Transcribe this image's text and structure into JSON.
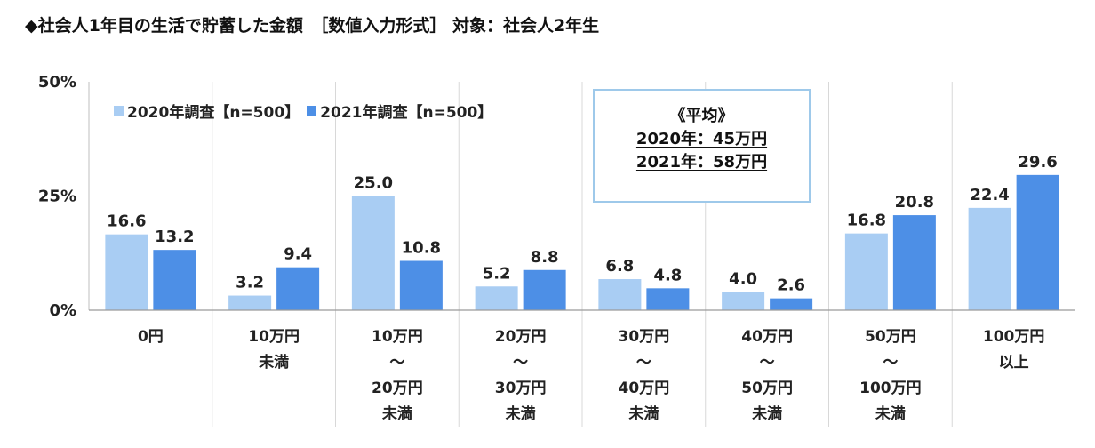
{
  "title": "◆社会人1年目の生活で貯蓄した金額　［数値入力形式］ 対象：社会人2年生",
  "legend": {
    "s1": "2020年調査【n=500】",
    "s2": "2021年調査【n=500】"
  },
  "average_box": {
    "heading": "《平均》",
    "line1": "2020年：45万円",
    "line2": "2021年：58万円"
  },
  "colors": {
    "series_2020": "#a9cdf3",
    "series_2021": "#4d8fe6",
    "grid": "#d8d8d8",
    "box_border": "#9ec9ea"
  },
  "chart_data": {
    "type": "bar",
    "title": "◆社会人1年目の生活で貯蓄した金額　［数値入力形式］ 対象：社会人2年生",
    "xlabel": "",
    "ylabel": "",
    "ylim": [
      0,
      50
    ],
    "yticks": [
      "0%",
      "25%",
      "50%"
    ],
    "ytick_values": [
      0,
      25,
      50
    ],
    "grid": "vertical category separators",
    "legend_position": "top-left",
    "categories": [
      [
        "0円"
      ],
      [
        "10万円",
        "未満"
      ],
      [
        "10万円",
        "～",
        "20万円",
        "未満"
      ],
      [
        "20万円",
        "～",
        "30万円",
        "未満"
      ],
      [
        "30万円",
        "～",
        "40万円",
        "未満"
      ],
      [
        "40万円",
        "～",
        "50万円",
        "未満"
      ],
      [
        "50万円",
        "～",
        "100万円",
        "未満"
      ],
      [
        "100万円",
        "以上"
      ]
    ],
    "series": [
      {
        "name": "2020年調査【n=500】",
        "values": [
          16.6,
          3.2,
          25.0,
          5.2,
          6.8,
          4.0,
          16.8,
          22.4
        ]
      },
      {
        "name": "2021年調査【n=500】",
        "values": [
          13.2,
          9.4,
          10.8,
          8.8,
          4.8,
          2.6,
          20.8,
          29.6
        ]
      }
    ]
  }
}
